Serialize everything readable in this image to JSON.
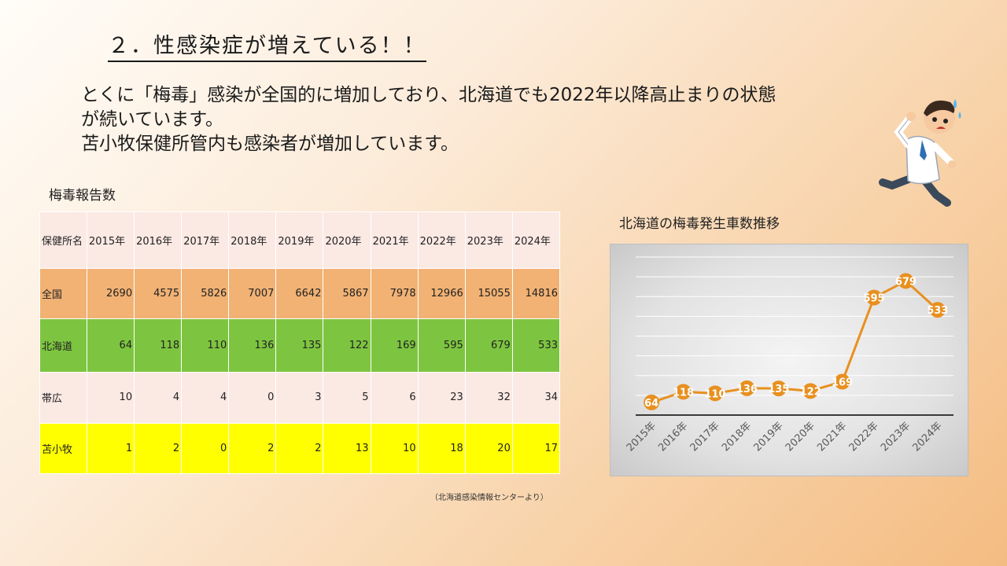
{
  "slide": {
    "title": "２．性感染症が増えている！！",
    "body_lines": [
      "とくに「梅毒」感染が全国的に増加しており、北海道でも2022年以降高止まりの状態",
      "が続いています。",
      "苫小牧保健所管内も感染者が増加しています。"
    ]
  },
  "table": {
    "title": "梅毒報告数",
    "header_label": "保健所名",
    "years": [
      "2015年",
      "2016年",
      "2017年",
      "2018年",
      "2019年",
      "2020年",
      "2021年",
      "2022年",
      "2023年",
      "2024年"
    ],
    "rows": [
      {
        "name": "全国",
        "values": [
          2690,
          4575,
          5826,
          7007,
          6642,
          5867,
          7978,
          12966,
          15055,
          14816
        ],
        "color": "#f1b274"
      },
      {
        "name": "北海道",
        "values": [
          64,
          118,
          110,
          136,
          135,
          122,
          169,
          595,
          679,
          533
        ],
        "color": "#7dc540"
      },
      {
        "name": "帯広",
        "values": [
          10,
          4,
          4,
          0,
          3,
          5,
          6,
          23,
          32,
          34
        ],
        "color": "#fbe9e4"
      },
      {
        "name": "苫小牧",
        "values": [
          1,
          2,
          0,
          2,
          2,
          13,
          10,
          18,
          20,
          17
        ],
        "color": "#ffff00"
      }
    ],
    "source": "（北海道感染情報センターより）"
  },
  "chart_data": {
    "type": "line",
    "title": "北海道の梅毒発生車数推移",
    "categories": [
      "2015年",
      "2016年",
      "2017年",
      "2018年",
      "2019年",
      "2020年",
      "2021年",
      "2022年",
      "2023年",
      "2024年"
    ],
    "series": [
      {
        "values": [
          64,
          118,
          110,
          136,
          135,
          122,
          169,
          595,
          679,
          533
        ],
        "color": "#e8901f"
      }
    ],
    "ylim": [
      0,
      800
    ],
    "grid": true,
    "data_labels": true,
    "legend": "none"
  },
  "illustration": {
    "icon": "running-doctor-icon"
  }
}
